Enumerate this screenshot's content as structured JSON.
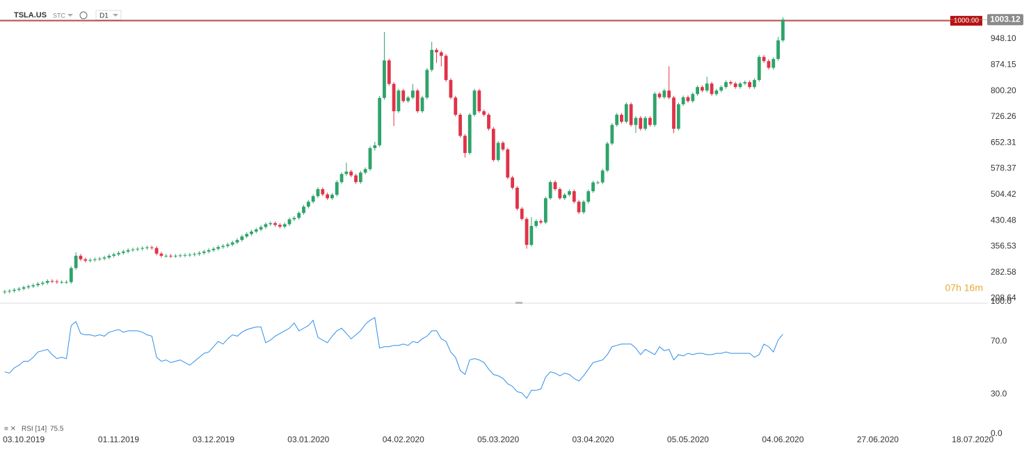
{
  "header": {
    "symbol": "TSLA.US",
    "tag": "STC",
    "timeframe": "D1"
  },
  "chart_data": [
    {
      "type": "candlestick",
      "open": [
        226,
        228,
        230,
        233,
        236,
        240,
        243,
        246,
        250,
        253,
        258,
        257,
        255,
        255,
        255,
        295,
        330,
        320,
        316,
        318,
        320,
        322,
        325,
        330,
        334,
        338,
        342,
        346,
        348,
        350,
        352,
        354,
        352,
        336,
        330,
        330,
        329,
        330,
        331,
        332,
        333,
        335,
        338,
        342,
        346,
        350,
        355,
        358,
        362,
        368,
        375,
        385,
        392,
        399,
        405,
        412,
        420,
        423,
        418,
        413,
        420,
        434,
        438,
        452,
        470,
        484,
        500,
        520,
        505,
        494,
        504,
        540,
        563,
        570,
        559,
        540,
        567,
        577,
        637,
        645,
        780,
        887,
        820,
        742,
        801,
        771,
        781,
        801,
        742,
        781,
        860,
        917,
        910,
        900,
        831,
        781,
        732,
        672,
        623,
        732,
        801,
        742,
        732,
        692,
        603,
        652,
        633,
        553,
        524,
        464,
        435,
        361,
        415,
        429,
        425,
        494,
        540,
        520,
        494,
        504,
        514,
        484,
        454,
        484,
        514,
        539,
        539,
        573,
        650,
        703,
        732,
        712,
        762,
        703,
        723,
        692,
        723,
        703,
        792,
        782,
        801,
        781,
        692,
        762,
        782,
        771,
        791,
        811,
        801,
        821,
        791,
        801,
        811,
        825,
        821,
        811,
        821,
        825,
        811,
        831,
        897,
        885,
        866,
        891,
        944
      ],
      "high": [
        233,
        235,
        238,
        241,
        245,
        248,
        251,
        255,
        258,
        263,
        263,
        262,
        260,
        260,
        300,
        340,
        335,
        325,
        323,
        325,
        327,
        330,
        335,
        339,
        343,
        347,
        351,
        353,
        355,
        357,
        359,
        359,
        357,
        341,
        335,
        335,
        335,
        336,
        337,
        338,
        340,
        343,
        347,
        351,
        355,
        360,
        363,
        367,
        373,
        380,
        390,
        397,
        404,
        410,
        417,
        425,
        428,
        428,
        423,
        425,
        439,
        443,
        457,
        475,
        489,
        505,
        525,
        525,
        510,
        509,
        545,
        568,
        595,
        575,
        564,
        572,
        582,
        642,
        655,
        785,
        968,
        892,
        825,
        806,
        806,
        786,
        820,
        806,
        786,
        865,
        940,
        922,
        915,
        905,
        836,
        786,
        737,
        677,
        737,
        806,
        806,
        747,
        737,
        697,
        657,
        657,
        638,
        558,
        529,
        469,
        440,
        440,
        434,
        434,
        499,
        545,
        545,
        525,
        509,
        519,
        519,
        489,
        489,
        519,
        544,
        544,
        578,
        655,
        708,
        737,
        737,
        767,
        767,
        728,
        728,
        728,
        728,
        797,
        797,
        806,
        870,
        786,
        767,
        787,
        787,
        796,
        816,
        816,
        840,
        826,
        806,
        816,
        830,
        830,
        826,
        826,
        830,
        830,
        836,
        902,
        902,
        890,
        896,
        954,
        1010
      ],
      "low": [
        221,
        223,
        225,
        228,
        231,
        235,
        238,
        241,
        245,
        248,
        252,
        250,
        250,
        250,
        250,
        290,
        315,
        311,
        311,
        313,
        315,
        317,
        320,
        325,
        329,
        333,
        337,
        341,
        343,
        345,
        347,
        347,
        331,
        325,
        325,
        324,
        324,
        325,
        326,
        327,
        328,
        330,
        333,
        337,
        341,
        345,
        350,
        353,
        357,
        363,
        370,
        380,
        387,
        394,
        400,
        407,
        415,
        413,
        408,
        408,
        415,
        429,
        433,
        447,
        465,
        479,
        495,
        500,
        489,
        489,
        499,
        535,
        558,
        554,
        535,
        535,
        562,
        572,
        630,
        640,
        775,
        815,
        700,
        737,
        766,
        766,
        776,
        737,
        737,
        776,
        855,
        880,
        870,
        826,
        776,
        727,
        667,
        610,
        618,
        727,
        737,
        727,
        687,
        598,
        598,
        628,
        548,
        519,
        459,
        430,
        350,
        356,
        410,
        420,
        420,
        489,
        515,
        489,
        489,
        499,
        479,
        449,
        449,
        479,
        509,
        534,
        534,
        568,
        645,
        698,
        707,
        707,
        698,
        680,
        687,
        687,
        698,
        698,
        777,
        777,
        776,
        680,
        687,
        757,
        766,
        766,
        786,
        796,
        796,
        786,
        786,
        796,
        806,
        816,
        806,
        806,
        816,
        806,
        806,
        826,
        880,
        861,
        861,
        886,
        939
      ],
      "close": [
        228,
        230,
        233,
        236,
        240,
        243,
        246,
        250,
        253,
        258,
        257,
        255,
        255,
        255,
        295,
        330,
        320,
        316,
        318,
        320,
        322,
        325,
        330,
        334,
        338,
        342,
        346,
        348,
        350,
        352,
        354,
        352,
        336,
        330,
        330,
        329,
        330,
        331,
        332,
        333,
        335,
        338,
        342,
        346,
        350,
        355,
        358,
        362,
        368,
        375,
        385,
        392,
        399,
        405,
        412,
        420,
        423,
        418,
        413,
        420,
        434,
        438,
        452,
        470,
        484,
        500,
        520,
        505,
        494,
        504,
        540,
        563,
        570,
        559,
        540,
        567,
        577,
        637,
        645,
        780,
        887,
        820,
        742,
        801,
        771,
        781,
        801,
        742,
        781,
        860,
        917,
        910,
        900,
        831,
        781,
        732,
        672,
        623,
        732,
        801,
        742,
        732,
        692,
        603,
        652,
        633,
        553,
        524,
        464,
        435,
        361,
        415,
        429,
        425,
        494,
        540,
        520,
        494,
        504,
        514,
        484,
        454,
        484,
        514,
        539,
        539,
        573,
        650,
        703,
        732,
        712,
        762,
        703,
        723,
        692,
        723,
        703,
        792,
        782,
        801,
        781,
        692,
        762,
        782,
        771,
        791,
        811,
        801,
        821,
        791,
        801,
        811,
        825,
        821,
        811,
        821,
        825,
        811,
        831,
        897,
        885,
        866,
        891,
        944,
        1003
      ],
      "up_color": "#2ea36a",
      "down_color": "#e03348",
      "xlim": [
        -1,
        207.2
      ],
      "xticks": [
        {
          "value": 4,
          "label": "03.10.2019"
        },
        {
          "value": 24,
          "label": "01.11.2019"
        },
        {
          "value": 44,
          "label": "03.12.2019"
        },
        {
          "value": 64,
          "label": "03.01.2020"
        },
        {
          "value": 84,
          "label": "04.02.2020"
        },
        {
          "value": 104,
          "label": "05.03.2020"
        },
        {
          "value": 124,
          "label": "03.04.2020"
        },
        {
          "value": 144,
          "label": "05.05.2020"
        },
        {
          "value": 164,
          "label": "04.06.2020"
        },
        {
          "value": 184,
          "label": "27.06.2020"
        },
        {
          "value": 204,
          "label": "18.07.2020"
        }
      ],
      "ylim": [
        194.8,
        1031.4
      ],
      "yticks": [
        {
          "value": 208.64,
          "label": "208.64"
        },
        {
          "value": 282.58,
          "label": "282.58"
        },
        {
          "value": 356.53,
          "label": "356.53"
        },
        {
          "value": 430.48,
          "label": "430.48"
        },
        {
          "value": 504.42,
          "label": "504.42"
        },
        {
          "value": 578.37,
          "label": "578.37"
        },
        {
          "value": 652.31,
          "label": "652.31"
        },
        {
          "value": 726.26,
          "label": "726.26"
        },
        {
          "value": 800.2,
          "label": "800.20"
        },
        {
          "value": 874.15,
          "label": "874.15"
        },
        {
          "value": 948.1,
          "label": "948.10"
        }
      ],
      "alert_line": {
        "value": 1000,
        "label": "1000.00",
        "color": "#b80f0f"
      },
      "last_price": 1003.12,
      "timer": "07h 16m"
    },
    {
      "type": "line",
      "name": "RSI [14]",
      "color": "#2e8ee8",
      "values": [
        47,
        46,
        50,
        52,
        55,
        55,
        58,
        62,
        63,
        64,
        60,
        57,
        58,
        57,
        82,
        85,
        76,
        75,
        75,
        74,
        75,
        74,
        77,
        78,
        79,
        77,
        78,
        78,
        78,
        77,
        75,
        74,
        58,
        55,
        56,
        54,
        55,
        56,
        54,
        52,
        55,
        58,
        61,
        62,
        66,
        70,
        68,
        72,
        75,
        74,
        77,
        79,
        80,
        81,
        81,
        69,
        71,
        74,
        76,
        78,
        80,
        84,
        78,
        80,
        82,
        86,
        73,
        71,
        69,
        74,
        78,
        80,
        76,
        72,
        75,
        78,
        83,
        86,
        88,
        65,
        66,
        66,
        67,
        67,
        68,
        67,
        70,
        69,
        72,
        74,
        78,
        78,
        72,
        70,
        62,
        58,
        48,
        45,
        56,
        57,
        56,
        54,
        49,
        45,
        44,
        42,
        38,
        36,
        32,
        31,
        27,
        33,
        33,
        34,
        43,
        47,
        46,
        44,
        46,
        45,
        42,
        40,
        44,
        49,
        54,
        55,
        56,
        60,
        66,
        67,
        68,
        68,
        68,
        65,
        60,
        64,
        62,
        60,
        66,
        63,
        64,
        56,
        60,
        59,
        61,
        60,
        61,
        61,
        60,
        60,
        61,
        61,
        62,
        61,
        61,
        61,
        61,
        61,
        58,
        60,
        68,
        66,
        62,
        71,
        75.5
      ],
      "ylim": [
        0,
        100
      ],
      "yticks": [
        {
          "value": 0,
          "label": "0.0"
        },
        {
          "value": 30,
          "label": "30.0"
        },
        {
          "value": 70,
          "label": "70.0"
        },
        {
          "value": 100,
          "label": "100.0"
        }
      ]
    }
  ]
}
